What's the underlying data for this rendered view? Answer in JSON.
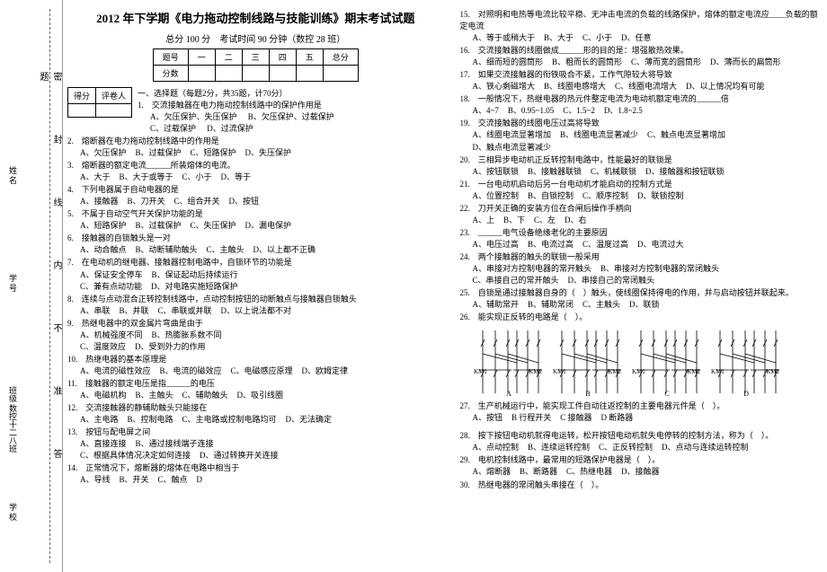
{
  "binding": {
    "school": "学 校",
    "class_label": "班级 数控十二八班",
    "student_no": "学 号",
    "name": "姓 名",
    "seal": "密封线内不准答题",
    "note_segments": [
      "密",
      "封",
      "线"
    ]
  },
  "header": {
    "title": "2012 年下学期《电力拖动控制线路与技能训练》期末考试试题",
    "subtitle": "总分 100 分　考试时间 90 分钟（数控 28 班）"
  },
  "score_table": {
    "r1": [
      "题号",
      "一",
      "二",
      "三",
      "四",
      "五",
      "总分"
    ],
    "r2": [
      "分数",
      "",
      "",
      "",
      "",
      "",
      ""
    ]
  },
  "mini_table": {
    "c1": "得分",
    "c2": "评卷人"
  },
  "section1": {
    "title": "一、选择题（每题2分，共35题，计70分）",
    "lead": "1.　交流接触器在电力拖动控制线路中的保护作用是",
    "lead_opts": [
      "A、欠压保护、失压保护",
      "B、欠压保护、过载保护",
      "C、过载保护",
      "D、过流保护"
    ]
  },
  "ql": [
    {
      "n": "2",
      "s": "熔断器在电力拖动控制线路中的作用是",
      "o": [
        "A、欠压保护",
        "B、过载保护",
        "C、短路保护",
        "D、失压保护"
      ]
    },
    {
      "n": "3",
      "s": "熔断器的额定电流______所装熔体的电流。",
      "o": [
        "A、大于",
        "B、大于或等于",
        "C、小于",
        "D、等于"
      ]
    },
    {
      "n": "4",
      "s": "下列电器属于自动电器的是",
      "o": [
        "A、接触器",
        "B、刀开关",
        "C、组合开关",
        "D、按钮"
      ]
    },
    {
      "n": "5",
      "s": "不属于自动空气开关保护功能的是",
      "o": [
        "A、短路保护",
        "B、过载保护",
        "C、失压保护",
        "D、漏电保护"
      ]
    },
    {
      "n": "6",
      "s": "接触器的自锁触头是一对",
      "o": [
        "A、动合触点",
        "B、动断辅助触头",
        "C、主触头",
        "D、以上都不正确"
      ]
    },
    {
      "n": "7",
      "s": "在电动机的继电器、接触器控制电路中，自锁环节的功能是",
      "o": [
        "A、保证安全停车",
        "",
        "B、保证起动后持续运行",
        ""
      ],
      "two": true,
      "o2": [
        "C、兼有点动功能",
        "",
        "D、对电路实施短路保护",
        ""
      ]
    },
    {
      "n": "8",
      "s": "连续与点动混合正转控制线路中，点动控制按钮的动断触点与接触器自锁触头",
      "o": [
        "A、串联",
        "B、并联",
        "C、串联或并联",
        "D、以上说法都不对"
      ]
    },
    {
      "n": "9",
      "s": "热继电器中的双金属片弯曲是由于",
      "o": [
        "A、机械强度不同",
        "",
        "B、热膨胀系数不同",
        ""
      ],
      "two": true,
      "o2": [
        "C、温度效应",
        "",
        "D、受到外力的作用",
        ""
      ]
    },
    {
      "n": "10",
      "s": "热继电器的基本原理是",
      "o": [
        "A、电流的磁性效应",
        "B、电流的磁效应",
        "C、电磁感应原理",
        "D、欧姆定律"
      ]
    },
    {
      "n": "11",
      "s": "接触器的额定电压是指______的电压",
      "o": [
        "A、电磁机构",
        "B、主触头",
        "C、辅助触头",
        "D、吸引线圈"
      ]
    },
    {
      "n": "12",
      "s": "交流接触器的静辅助触头只能接在",
      "o": [
        "A、主电路",
        "B、控制电路",
        "C、主电路或控制电路均可",
        "D、无法确定"
      ]
    },
    {
      "n": "13",
      "s": "按钮与配电屏之间",
      "o": [
        "A、直接连接",
        "",
        "B、通过接线端子连接",
        ""
      ],
      "two": true,
      "o2": [
        "C、根据具体情况决定如何连接",
        "",
        "D、通过转换开关连接",
        ""
      ]
    },
    {
      "n": "14",
      "s": "正常情况下，熔断器的熔体在电路中相当于",
      "o": [
        "A、导线",
        "B、开关",
        "C、触点",
        "D"
      ]
    }
  ],
  "qr": [
    {
      "n": "15",
      "s": "对照明和电热等电流比较平稳、无冲击电流的负载的线路保护，熔体的额定电流应____负载的额定电流",
      "o": [
        "A、等于或稍大于",
        "B、大于",
        "C、小于",
        "D、任意"
      ]
    },
    {
      "n": "16",
      "s": "交流接触器的线圈做成______形的目的是：增强散热效果。",
      "o": [
        "A、细而短的圆筒形",
        "B、粗而长的圆筒形",
        "C、薄而宽的圆筒形",
        "D、薄而长的扁筒形"
      ]
    },
    {
      "n": "17",
      "s": "如果交流接触器的衔铁吸合不紧，工作气隙较大将导致",
      "o": [
        "A、铁心剩磁增大",
        "B、线圈电感增大",
        "C、线圈电流增大",
        "D、以上情况均有可能"
      ]
    },
    {
      "n": "18",
      "s": "一般情况下，热继电器的热元件整定电流为电动机额定电流的______倍",
      "o": [
        "A、4~7",
        "B、0.95~1.05",
        "C、1.5~2",
        "D、1.8~2.5"
      ]
    },
    {
      "n": "19",
      "s": "交流接触器的线圈电压过高将导致",
      "o": [
        "A、线圈电流显著增加",
        "B、线圈电流显著减少",
        "C、触点电流显著增加",
        "D、触点电流显著减少"
      ]
    },
    {
      "n": "20",
      "s": "三相异步电动机正反转控制电路中，性能最好的联锁是",
      "o": [
        "A、按钮联锁",
        "B、接触器联锁",
        "C、机械联锁",
        "D、接触器和按钮联锁"
      ]
    },
    {
      "n": "21",
      "s": "一台电动机启动后另一台电动机才能启动的控制方式是",
      "o": [
        "A、位置控制",
        "B、自锁控制",
        "C、顺序控制",
        "D、联锁控制"
      ]
    },
    {
      "n": "22",
      "s": "刀开关正确的安装方位在合闸后操作手柄向",
      "o": [
        "A、上",
        "B、下",
        "C、左",
        "D、右"
      ]
    },
    {
      "n": "23",
      "s": "______电气设备绝缘老化的主要原因",
      "o": [
        "A、电压过高",
        "B、电流过高",
        "C、温度过高",
        "D、电流过大"
      ]
    },
    {
      "n": "24",
      "s": "两个接触器的触头的联锁一般采用",
      "o": [
        "A、串接对方控制电器的常开触头",
        "",
        "B、串接对方控制电器的常闭触头",
        ""
      ],
      "two": true,
      "o2": [
        "C、串接自己的常开触头",
        "",
        "D、串接自己的常闭触头",
        ""
      ]
    },
    {
      "n": "25",
      "s": "自锁是通过接触器自身的（　）触头，使线圈保持得电的作用，并与启动按钮并联起来。",
      "o": [
        "A、辅助常开",
        "B、辅助常闭",
        "C、主触头",
        "D、联锁"
      ]
    },
    {
      "n": "26",
      "s": "能实现正反转的电路是（　）。",
      "diagram": true
    },
    {
      "n": "27",
      "s": "生产机械运行中，能实现工件自动往返控制的主要电器元件是（　）。",
      "o": [
        "A、按钮",
        "B 行程开关",
        "C 接触器",
        "D 断路器"
      ]
    }
  ],
  "qr2": [
    {
      "n": "28",
      "s": "按下按钮电动机就得电运转，松开按钮电动机就失电停转的控制方法，称为（　）。",
      "o": [
        "A、点动控制",
        "B、连续运转控制",
        "C、正反转控制",
        "D、点动与连续运转控制"
      ]
    },
    {
      "n": "29",
      "s": "电机控制线路中，最常用的短路保护电器是（　）。",
      "o": [
        "A、熔断器",
        "B、断路器",
        "C、热继电器",
        "D、接触器"
      ]
    },
    {
      "n": "30",
      "s": "热继电器的常闭触头串接在（　）。"
    }
  ],
  "diagram_labels": [
    "A",
    "B",
    "C",
    "D"
  ],
  "diagram_km": [
    "KM1",
    "KM2"
  ],
  "colors": {
    "text": "#000000",
    "bg": "#ffffff",
    "line": "#000000",
    "dash": "#666666"
  }
}
